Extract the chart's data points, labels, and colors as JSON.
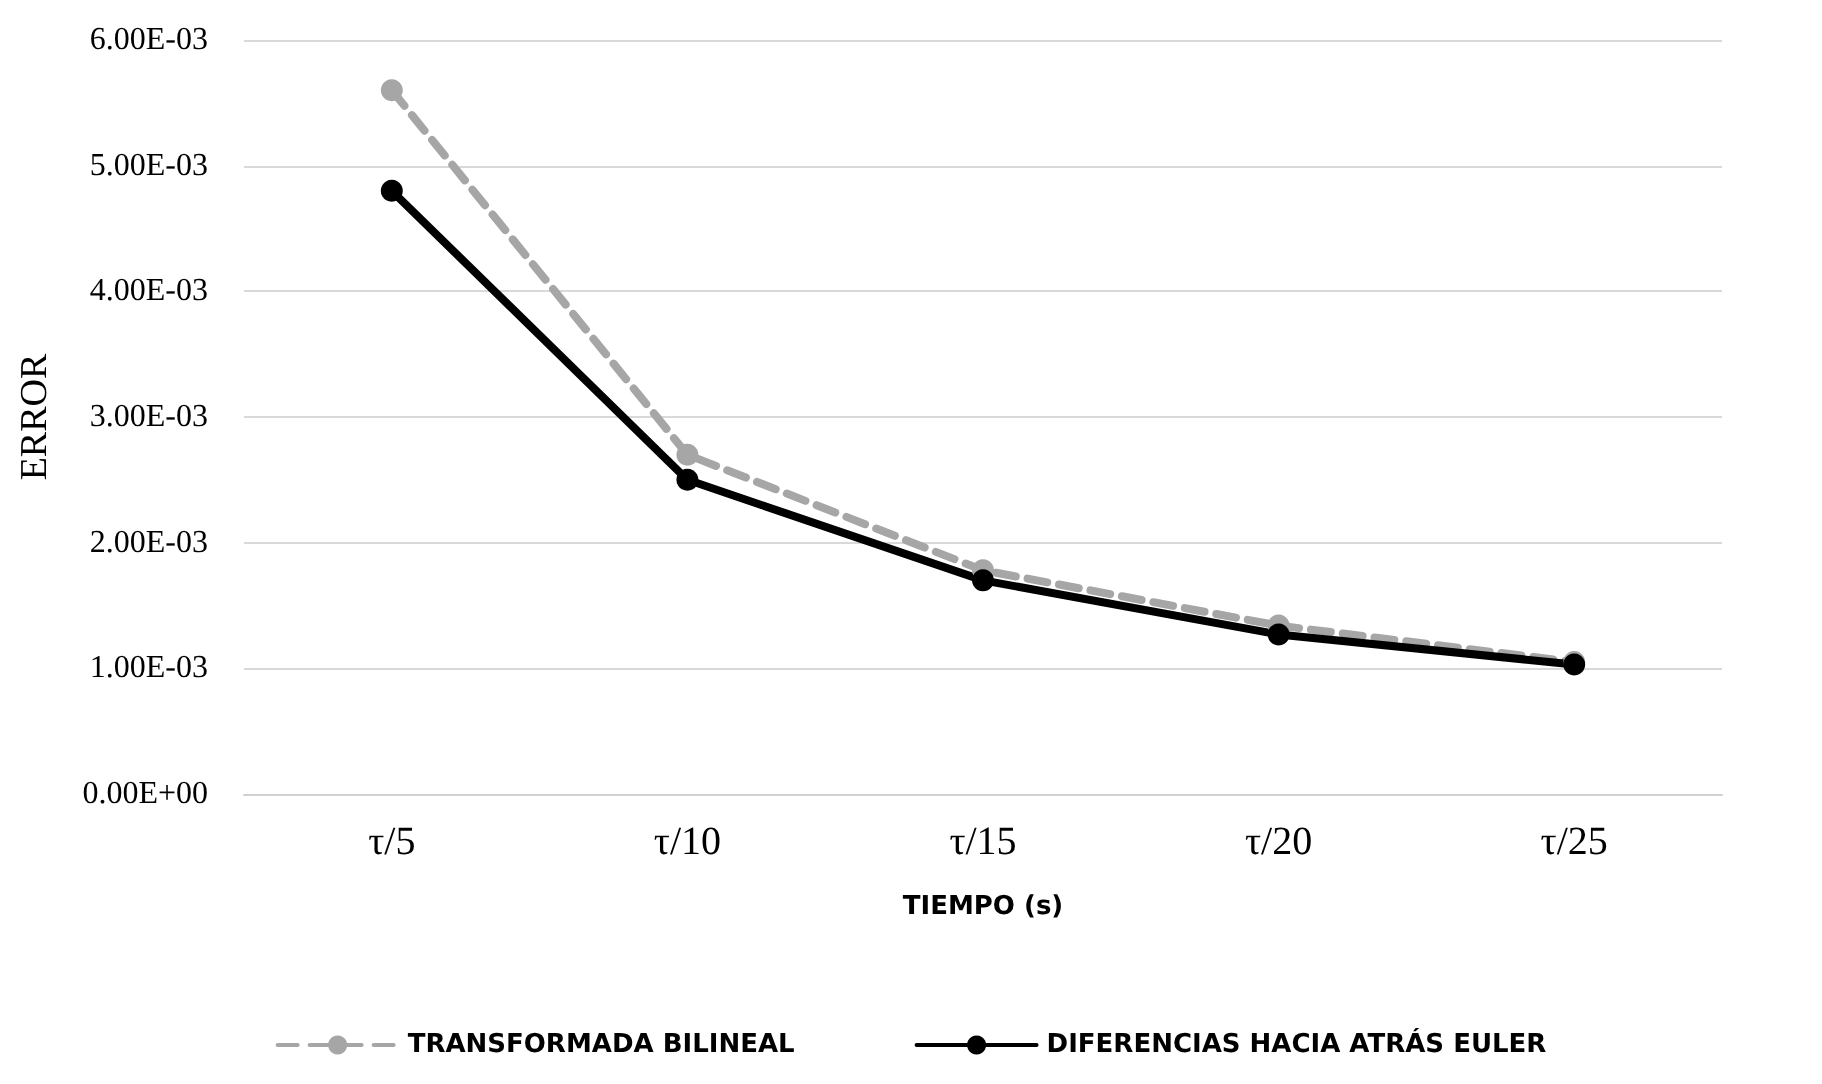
{
  "chart_data": {
    "type": "line",
    "xlabel": "TIEMPO (s)",
    "ylabel": "ERROR",
    "categories": [
      "τ/5",
      "τ/10",
      "τ/15",
      "τ/20",
      "τ/25"
    ],
    "series": [
      {
        "name": "TRANSFORMADA BILINEAL",
        "color": "#a6a6a6",
        "line_style": "dashed",
        "values": [
          0.0056,
          0.0027,
          0.00178,
          0.00134,
          0.00105
        ]
      },
      {
        "name": "DIFERENCIAS HACIA ATRÁS EULER",
        "color": "#000000",
        "line_style": "solid",
        "values": [
          0.0048,
          0.0025,
          0.0017,
          0.00127,
          0.00103
        ]
      }
    ],
    "ylim": [
      0,
      0.006
    ],
    "yticks": [
      {
        "value": 0,
        "label": "0.00E+00"
      },
      {
        "value": 0.001,
        "label": "1.00E-03"
      },
      {
        "value": 0.002,
        "label": "2.00E-03"
      },
      {
        "value": 0.003,
        "label": "3.00E-03"
      },
      {
        "value": 0.004,
        "label": "4.00E-03"
      },
      {
        "value": 0.005,
        "label": "5.00E-03"
      },
      {
        "value": 0.006,
        "label": "6.00E-03"
      }
    ],
    "grid": "y",
    "legend": "bottom",
    "marker": "circle"
  }
}
